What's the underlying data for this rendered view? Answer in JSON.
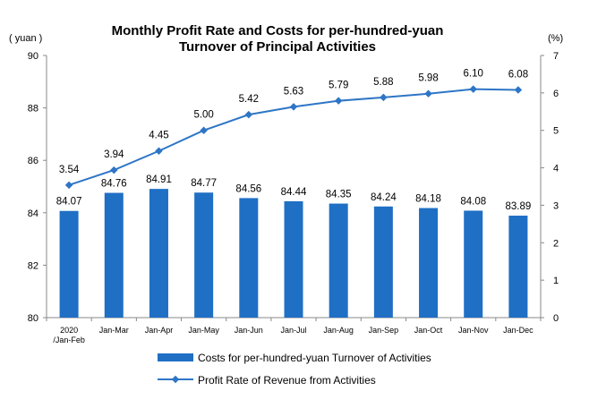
{
  "chart_data": {
    "type": "bar+line",
    "title_line1": "Monthly Profit Rate and Costs for per-hundred-yuan",
    "title_line2": "Turnover of Principal Activities",
    "left_unit": "( yuan )",
    "right_unit": "(%)",
    "categories": [
      [
        "2020",
        "/Jan-Feb"
      ],
      [
        "Jan-Mar"
      ],
      [
        "Jan-Apr"
      ],
      [
        "Jan-May"
      ],
      [
        "Jan-Jun"
      ],
      [
        "Jan-Jul"
      ],
      [
        "Jan-Aug"
      ],
      [
        "Jan-Sep"
      ],
      [
        "Jan-Oct"
      ],
      [
        "Jan-Nov"
      ],
      [
        "Jan-Dec"
      ]
    ],
    "left_axis": {
      "min": 80,
      "max": 90,
      "ticks": [
        80,
        82,
        84,
        86,
        88,
        90
      ]
    },
    "right_axis": {
      "min": 0,
      "max": 7,
      "ticks": [
        0,
        1,
        2,
        3,
        4,
        5,
        6,
        7
      ]
    },
    "series": [
      {
        "name": "Costs for per-hundred-yuan Turnover of  Activities",
        "type": "bar",
        "axis": "left",
        "color": "#1F6FC5",
        "values": [
          84.07,
          84.76,
          84.91,
          84.77,
          84.56,
          84.44,
          84.35,
          84.24,
          84.18,
          84.08,
          83.89
        ]
      },
      {
        "name": "Profit Rate of Revenue from Activities",
        "type": "line",
        "axis": "right",
        "color": "#2E75C6",
        "values": [
          3.54,
          3.94,
          4.45,
          5.0,
          5.42,
          5.63,
          5.79,
          5.88,
          5.98,
          6.1,
          6.08
        ]
      }
    ],
    "legend_placement": "bottom",
    "grid": false
  }
}
